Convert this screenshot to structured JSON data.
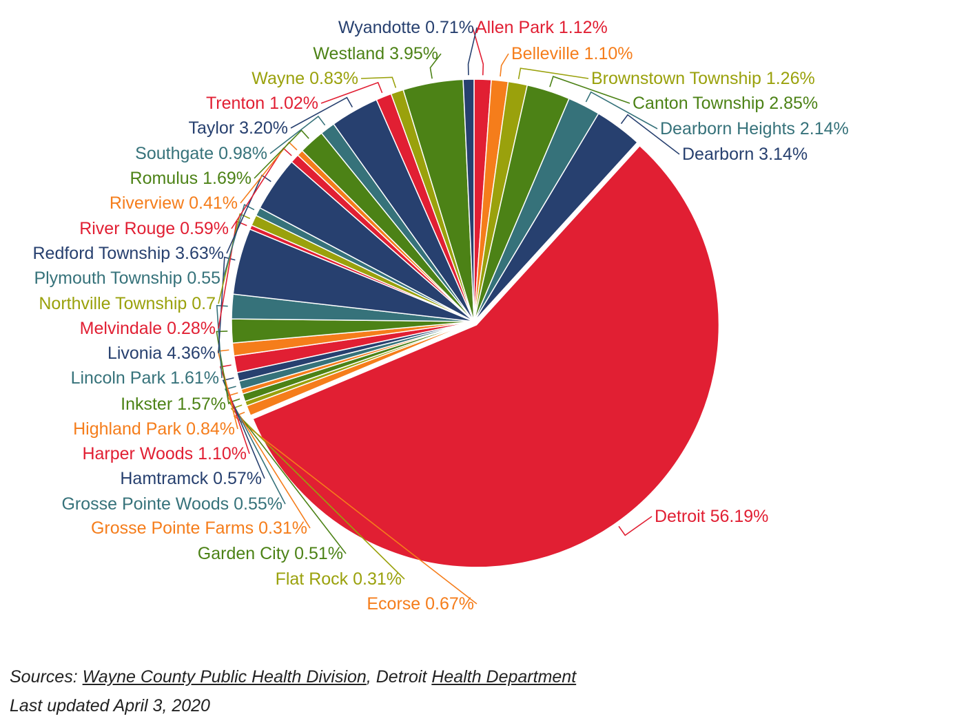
{
  "chart_data": {
    "type": "pie",
    "title": "",
    "slices": [
      {
        "name": "Allen Park",
        "label": "Allen Park 1.12%",
        "value": 1.12,
        "color": "#e11f33"
      },
      {
        "name": "Belleville",
        "label": "Belleville 1.10%",
        "value": 1.1,
        "color": "#f57d1b"
      },
      {
        "name": "Brownstown Township",
        "label": "Brownstown Township 1.26%",
        "value": 1.26,
        "color": "#9aa10c"
      },
      {
        "name": "Canton Township",
        "label": "Canton Township 2.85%",
        "value": 2.85,
        "color": "#4c8216"
      },
      {
        "name": "Dearborn Heights",
        "label": "Dearborn Heights 2.14%",
        "value": 2.14,
        "color": "#36727a"
      },
      {
        "name": "Dearborn",
        "label": "Dearborn 3.14%",
        "value": 3.14,
        "color": "#27406f"
      },
      {
        "name": "Detroit",
        "label": "Detroit 56.19%",
        "value": 56.19,
        "color": "#e11f33"
      },
      {
        "name": "Ecorse",
        "label": "Ecorse 0.67%",
        "value": 0.67,
        "color": "#f57d1b"
      },
      {
        "name": "Flat Rock",
        "label": "Flat Rock 0.31%",
        "value": 0.31,
        "color": "#9aa10c"
      },
      {
        "name": "Garden City",
        "label": "Garden City 0.51%",
        "value": 0.51,
        "color": "#4c8216"
      },
      {
        "name": "Grosse Pointe Farms",
        "label": "Grosse Pointe Farms 0.31%",
        "value": 0.31,
        "color": "#f57d1b"
      },
      {
        "name": "Grosse Pointe Woods",
        "label": "Grosse Pointe Woods 0.55%",
        "value": 0.55,
        "color": "#36727a"
      },
      {
        "name": "Hamtramck",
        "label": "Hamtramck 0.57%",
        "value": 0.57,
        "color": "#27406f"
      },
      {
        "name": "Harper Woods",
        "label": "Harper Woods 1.10%",
        "value": 1.1,
        "color": "#e11f33"
      },
      {
        "name": "Highland Park",
        "label": "Highland Park 0.84%",
        "value": 0.84,
        "color": "#f57d1b"
      },
      {
        "name": "Inkster",
        "label": "Inkster 1.57%",
        "value": 1.57,
        "color": "#4c8216"
      },
      {
        "name": "Lincoln Park",
        "label": "Lincoln Park 1.61%",
        "value": 1.61,
        "color": "#36727a"
      },
      {
        "name": "Livonia",
        "label": "Livonia 4.36%",
        "value": 4.36,
        "color": "#27406f"
      },
      {
        "name": "Melvindale",
        "label": "Melvindale 0.28%",
        "value": 0.28,
        "color": "#e11f33"
      },
      {
        "name": "Northville Township",
        "label": "Northville Township 0.7",
        "value": 0.7,
        "color": "#9aa10c"
      },
      {
        "name": "Plymouth Township",
        "label": "Plymouth Township 0.55",
        "value": 0.55,
        "color": "#36727a"
      },
      {
        "name": "Redford Township",
        "label": "Redford Township 3.63%",
        "value": 3.63,
        "color": "#27406f"
      },
      {
        "name": "River Rouge",
        "label": "River Rouge 0.59%",
        "value": 0.59,
        "color": "#e11f33"
      },
      {
        "name": "Riverview",
        "label": "Riverview 0.41%",
        "value": 0.41,
        "color": "#f57d1b"
      },
      {
        "name": "Romulus",
        "label": "Romulus 1.69%",
        "value": 1.69,
        "color": "#4c8216"
      },
      {
        "name": "Southgate",
        "label": "Southgate 0.98%",
        "value": 0.98,
        "color": "#36727a"
      },
      {
        "name": "Taylor",
        "label": "Taylor 3.20%",
        "value": 3.2,
        "color": "#27406f"
      },
      {
        "name": "Trenton",
        "label": "Trenton 1.02%",
        "value": 1.02,
        "color": "#e11f33"
      },
      {
        "name": "Wayne",
        "label": "Wayne 0.83%",
        "value": 0.83,
        "color": "#9aa10c"
      },
      {
        "name": "Westland",
        "label": "Westland 3.95%",
        "value": 3.95,
        "color": "#4c8216"
      },
      {
        "name": "Wyandotte",
        "label": "Wyandotte 0.71%",
        "value": 0.71,
        "color": "#27406f"
      }
    ]
  },
  "footer": {
    "sources_prefix": "Sources: ",
    "source1": "Wayne County Public Health Division",
    "sources_mid": ", Detroit ",
    "source2": "Health Department",
    "updated": "Last updated April 3, 2020"
  }
}
